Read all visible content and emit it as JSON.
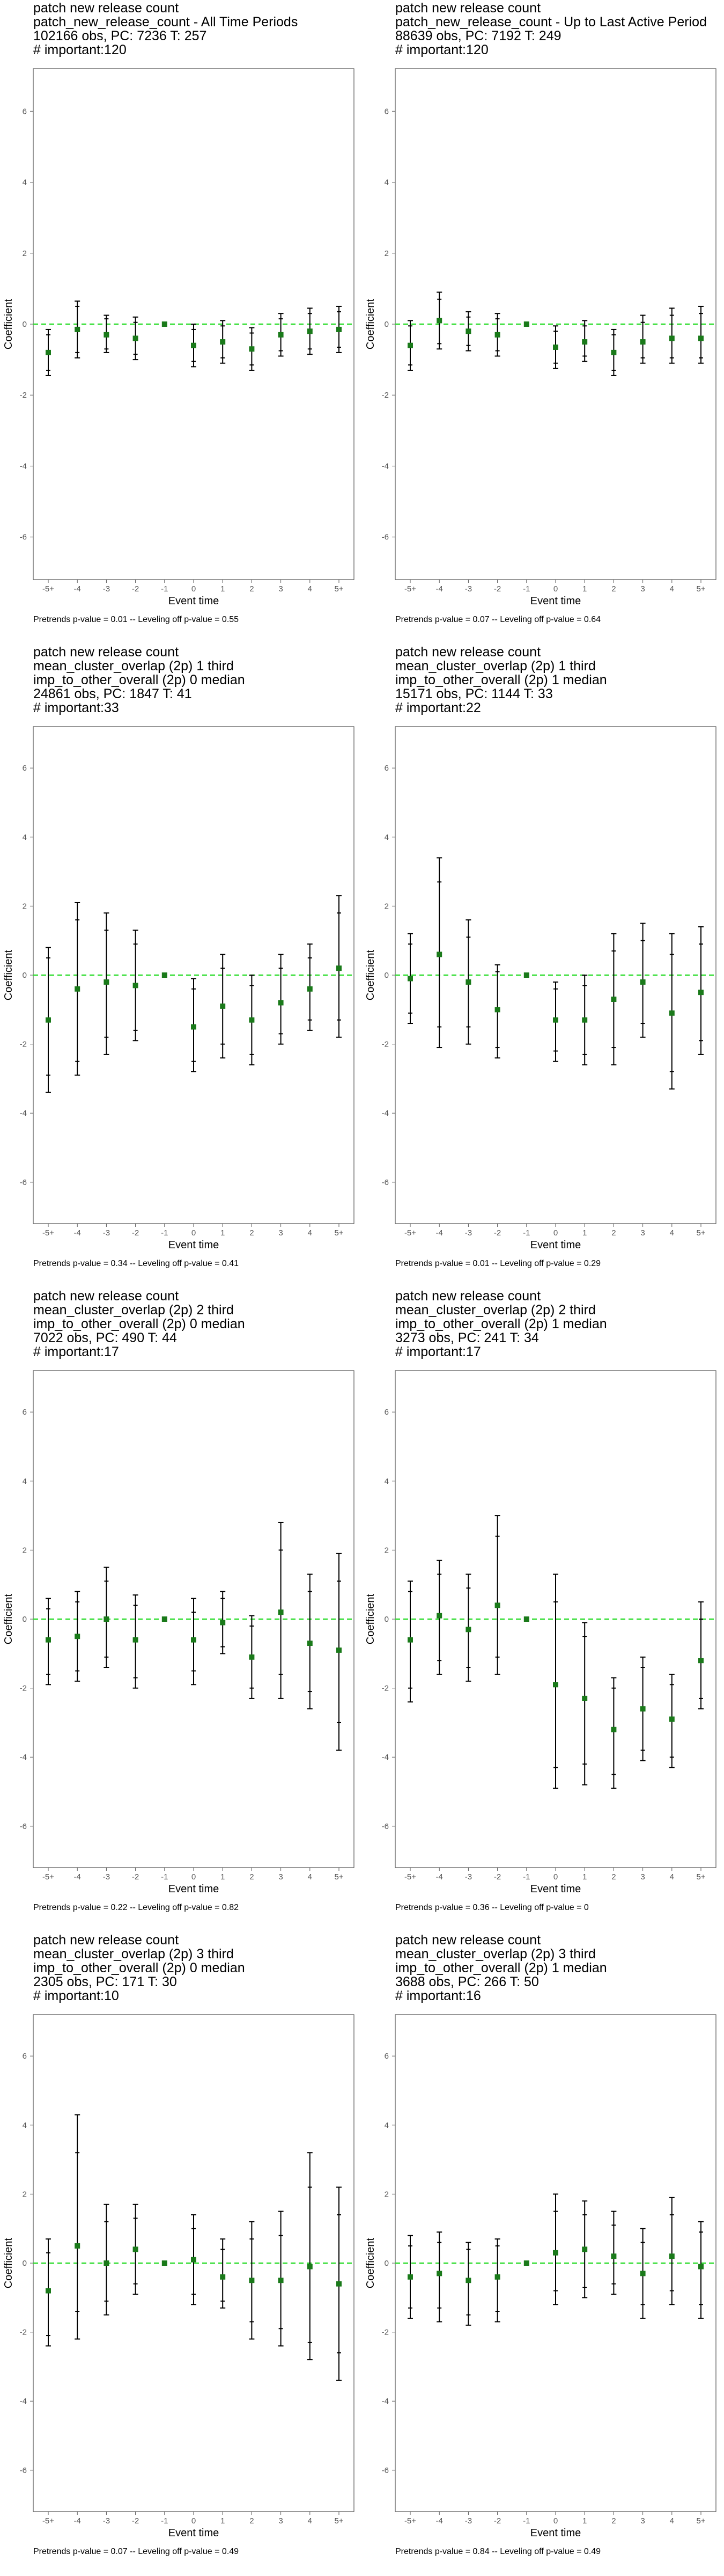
{
  "chart_data": [
    {
      "type": "scatter",
      "title_lines": [
        "patch new release count",
        "patch_new_release_count - All Time Periods",
        "102166 obs, PC: 7236 T: 257",
        "# important:120"
      ],
      "xlabel": "Event time",
      "ylabel": "Coefficient",
      "x_categories": [
        "-5+",
        "-4",
        "-3",
        "-2",
        "-1",
        "0",
        "1",
        "2",
        "3",
        "4",
        "5+"
      ],
      "ylim": [
        -7.2,
        7.2
      ],
      "yticks": [
        -6,
        -4,
        -2,
        0,
        2,
        4,
        6
      ],
      "points": [
        -0.8,
        -0.15,
        -0.3,
        -0.4,
        0,
        -0.6,
        -0.5,
        -0.7,
        -0.3,
        -0.2,
        -0.15
      ],
      "ci95": [
        [
          -1.45,
          -0.15
        ],
        [
          -0.95,
          0.65
        ],
        [
          -0.8,
          0.25
        ],
        [
          -1.0,
          0.2
        ],
        [
          0,
          0
        ],
        [
          -1.2,
          0.0
        ],
        [
          -1.1,
          0.1
        ],
        [
          -1.3,
          -0.1
        ],
        [
          -0.9,
          0.3
        ],
        [
          -0.85,
          0.45
        ],
        [
          -0.8,
          0.5
        ]
      ],
      "ci90": [
        [
          -1.3,
          -0.3
        ],
        [
          -0.8,
          0.5
        ],
        [
          -0.7,
          0.15
        ],
        [
          -0.85,
          0.05
        ],
        [
          0,
          0
        ],
        [
          -1.05,
          -0.15
        ],
        [
          -0.95,
          -0.05
        ],
        [
          -1.15,
          -0.25
        ],
        [
          -0.75,
          0.15
        ],
        [
          -0.7,
          0.3
        ],
        [
          -0.65,
          0.35
        ]
      ],
      "footnote": "Pretrends p-value = 0.01 -- Leveling off p-value = 0.55"
    },
    {
      "type": "scatter",
      "title_lines": [
        "patch new release count",
        "patch_new_release_count - Up to Last Active Period",
        "88639 obs, PC: 7192 T: 249",
        "# important:120"
      ],
      "xlabel": "Event time",
      "ylabel": "Coefficient",
      "x_categories": [
        "-5+",
        "-4",
        "-3",
        "-2",
        "-1",
        "0",
        "1",
        "2",
        "3",
        "4",
        "5+"
      ],
      "ylim": [
        -7.2,
        7.2
      ],
      "yticks": [
        -6,
        -4,
        -2,
        0,
        2,
        4,
        6
      ],
      "points": [
        -0.6,
        0.1,
        -0.2,
        -0.3,
        0,
        -0.65,
        -0.5,
        -0.8,
        -0.5,
        -0.4,
        -0.4
      ],
      "ci95": [
        [
          -1.3,
          0.1
        ],
        [
          -0.7,
          0.9
        ],
        [
          -0.75,
          0.35
        ],
        [
          -0.9,
          0.3
        ],
        [
          0,
          0
        ],
        [
          -1.25,
          -0.05
        ],
        [
          -1.05,
          0.1
        ],
        [
          -1.45,
          -0.15
        ],
        [
          -1.1,
          0.25
        ],
        [
          -1.1,
          0.45
        ],
        [
          -1.1,
          0.5
        ]
      ],
      "ci90": [
        [
          -1.15,
          -0.05
        ],
        [
          -0.55,
          0.7
        ],
        [
          -0.6,
          0.2
        ],
        [
          -0.75,
          0.15
        ],
        [
          0,
          0
        ],
        [
          -1.1,
          -0.2
        ],
        [
          -0.9,
          -0.05
        ],
        [
          -1.3,
          -0.3
        ],
        [
          -0.95,
          0.05
        ],
        [
          -0.95,
          0.25
        ],
        [
          -0.95,
          0.3
        ]
      ],
      "footnote": "Pretrends p-value = 0.07 -- Leveling off p-value = 0.64"
    },
    {
      "type": "scatter",
      "title_lines": [
        "patch new release count",
        "mean_cluster_overlap (2p) 1 third",
        "imp_to_other_overall (2p) 0 median",
        "24861 obs, PC: 1847 T: 41",
        "# important:33"
      ],
      "xlabel": "Event time",
      "ylabel": "Coefficient",
      "x_categories": [
        "-5+",
        "-4",
        "-3",
        "-2",
        "-1",
        "0",
        "1",
        "2",
        "3",
        "4",
        "5+"
      ],
      "ylim": [
        -7.2,
        7.2
      ],
      "yticks": [
        -6,
        -4,
        -2,
        0,
        2,
        4,
        6
      ],
      "points": [
        -1.3,
        -0.4,
        -0.2,
        -0.3,
        0,
        -1.5,
        -0.9,
        -1.3,
        -0.8,
        -0.4,
        0.2
      ],
      "ci95": [
        [
          -3.4,
          0.8
        ],
        [
          -2.9,
          2.1
        ],
        [
          -2.3,
          1.8
        ],
        [
          -1.9,
          1.3
        ],
        [
          0,
          0
        ],
        [
          -2.8,
          -0.1
        ],
        [
          -2.4,
          0.6
        ],
        [
          -2.6,
          0.0
        ],
        [
          -2.0,
          0.6
        ],
        [
          -1.6,
          0.9
        ],
        [
          -1.8,
          2.3
        ]
      ],
      "ci90": [
        [
          -2.9,
          0.5
        ],
        [
          -2.5,
          1.6
        ],
        [
          -1.8,
          1.3
        ],
        [
          -1.6,
          0.9
        ],
        [
          0,
          0
        ],
        [
          -2.5,
          -0.4
        ],
        [
          -2.0,
          0.2
        ],
        [
          -2.3,
          -0.3
        ],
        [
          -1.7,
          0.2
        ],
        [
          -1.3,
          0.5
        ],
        [
          -1.3,
          1.8
        ]
      ],
      "footnote": "Pretrends p-value = 0.34 -- Leveling off p-value = 0.41"
    },
    {
      "type": "scatter",
      "title_lines": [
        "patch new release count",
        "mean_cluster_overlap (2p) 1 third",
        "imp_to_other_overall (2p) 1 median",
        "15171 obs, PC: 1144 T: 33",
        "# important:22"
      ],
      "xlabel": "Event time",
      "ylabel": "Coefficient",
      "x_categories": [
        "-5+",
        "-4",
        "-3",
        "-2",
        "-1",
        "0",
        "1",
        "2",
        "3",
        "4",
        "5+"
      ],
      "ylim": [
        -7.2,
        7.2
      ],
      "yticks": [
        -6,
        -4,
        -2,
        0,
        2,
        4,
        6
      ],
      "points": [
        -0.1,
        0.6,
        -0.2,
        -1.0,
        0,
        -1.3,
        -1.3,
        -0.7,
        -0.2,
        -1.1,
        -0.5
      ],
      "ci95": [
        [
          -1.4,
          1.2
        ],
        [
          -2.1,
          3.4
        ],
        [
          -2.0,
          1.6
        ],
        [
          -2.4,
          0.3
        ],
        [
          0,
          0
        ],
        [
          -2.5,
          -0.2
        ],
        [
          -2.6,
          0.0
        ],
        [
          -2.6,
          1.2
        ],
        [
          -1.8,
          1.5
        ],
        [
          -3.3,
          1.2
        ],
        [
          -2.3,
          1.4
        ]
      ],
      "ci90": [
        [
          -1.1,
          0.9
        ],
        [
          -1.5,
          2.7
        ],
        [
          -1.5,
          1.1
        ],
        [
          -2.1,
          0.1
        ],
        [
          0,
          0
        ],
        [
          -2.2,
          -0.4
        ],
        [
          -2.3,
          -0.3
        ],
        [
          -2.1,
          0.7
        ],
        [
          -1.4,
          1.0
        ],
        [
          -2.8,
          0.6
        ],
        [
          -1.9,
          0.9
        ]
      ],
      "footnote": "Pretrends p-value = 0.01 -- Leveling off p-value = 0.29"
    },
    {
      "type": "scatter",
      "title_lines": [
        "patch new release count",
        "mean_cluster_overlap (2p) 2 third",
        "imp_to_other_overall (2p) 0 median",
        "7022 obs, PC: 490 T: 44",
        "# important:17"
      ],
      "xlabel": "Event time",
      "ylabel": "Coefficient",
      "x_categories": [
        "-5+",
        "-4",
        "-3",
        "-2",
        "-1",
        "0",
        "1",
        "2",
        "3",
        "4",
        "5+"
      ],
      "ylim": [
        -7.2,
        7.2
      ],
      "yticks": [
        -6,
        -4,
        -2,
        0,
        2,
        4,
        6
      ],
      "points": [
        -0.6,
        -0.5,
        0.0,
        -0.6,
        0,
        -0.6,
        -0.1,
        -1.1,
        0.2,
        -0.7,
        -0.9
      ],
      "ci95": [
        [
          -1.9,
          0.6
        ],
        [
          -1.8,
          0.8
        ],
        [
          -1.4,
          1.5
        ],
        [
          -2.0,
          0.7
        ],
        [
          0,
          0
        ],
        [
          -1.9,
          0.6
        ],
        [
          -1.0,
          0.8
        ],
        [
          -2.3,
          0.1
        ],
        [
          -2.3,
          2.8
        ],
        [
          -2.6,
          1.3
        ],
        [
          -3.8,
          1.9
        ]
      ],
      "ci90": [
        [
          -1.6,
          0.3
        ],
        [
          -1.5,
          0.5
        ],
        [
          -1.1,
          1.1
        ],
        [
          -1.7,
          0.4
        ],
        [
          0,
          0
        ],
        [
          -1.5,
          0.2
        ],
        [
          -0.8,
          0.6
        ],
        [
          -2.0,
          -0.2
        ],
        [
          -1.6,
          2.0
        ],
        [
          -2.1,
          0.8
        ],
        [
          -3.0,
          1.1
        ]
      ],
      "footnote": "Pretrends p-value = 0.22 -- Leveling off p-value = 0.82"
    },
    {
      "type": "scatter",
      "title_lines": [
        "patch new release count",
        "mean_cluster_overlap (2p) 2 third",
        "imp_to_other_overall (2p) 1 median",
        "3273 obs, PC: 241 T: 34",
        "# important:17"
      ],
      "xlabel": "Event time",
      "ylabel": "Coefficient",
      "x_categories": [
        "-5+",
        "-4",
        "-3",
        "-2",
        "-1",
        "0",
        "1",
        "2",
        "3",
        "4",
        "5+"
      ],
      "ylim": [
        -7.2,
        7.2
      ],
      "yticks": [
        -6,
        -4,
        -2,
        0,
        2,
        4,
        6
      ],
      "points": [
        -0.6,
        0.1,
        -0.3,
        0.4,
        0,
        -1.9,
        -2.3,
        -3.2,
        -2.6,
        -2.9,
        -1.2
      ],
      "ci95": [
        [
          -2.4,
          1.1
        ],
        [
          -1.6,
          1.7
        ],
        [
          -1.8,
          1.3
        ],
        [
          -1.6,
          3.0
        ],
        [
          0,
          0
        ],
        [
          -4.9,
          1.3
        ],
        [
          -4.8,
          -0.1
        ],
        [
          -4.9,
          -1.7
        ],
        [
          -4.1,
          -1.1
        ],
        [
          -4.3,
          -1.6
        ],
        [
          -2.6,
          0.5
        ]
      ],
      "ci90": [
        [
          -2.0,
          0.8
        ],
        [
          -1.2,
          1.3
        ],
        [
          -1.4,
          0.9
        ],
        [
          -1.1,
          2.4
        ],
        [
          0,
          0
        ],
        [
          -4.3,
          0.5
        ],
        [
          -4.2,
          -0.5
        ],
        [
          -4.5,
          -2.0
        ],
        [
          -3.8,
          -1.4
        ],
        [
          -4.0,
          -1.9
        ],
        [
          -2.3,
          0.0
        ]
      ],
      "footnote": "Pretrends p-value = 0.36 -- Leveling off p-value = 0"
    },
    {
      "type": "scatter",
      "title_lines": [
        "patch new release count",
        "mean_cluster_overlap (2p) 3 third",
        "imp_to_other_overall (2p) 0 median",
        "2305 obs, PC: 171 T: 30",
        "# important:10"
      ],
      "xlabel": "Event time",
      "ylabel": "Coefficient",
      "x_categories": [
        "-5+",
        "-4",
        "-3",
        "-2",
        "-1",
        "0",
        "1",
        "2",
        "3",
        "4",
        "5+"
      ],
      "ylim": [
        -7.2,
        7.2
      ],
      "yticks": [
        -6,
        -4,
        -2,
        0,
        2,
        4,
        6
      ],
      "points": [
        -0.8,
        0.5,
        0.0,
        0.4,
        0,
        0.1,
        -0.4,
        -0.5,
        -0.5,
        -0.1,
        -0.6
      ],
      "ci95": [
        [
          -2.4,
          0.7
        ],
        [
          -2.2,
          4.3
        ],
        [
          -1.5,
          1.7
        ],
        [
          -0.9,
          1.7
        ],
        [
          0,
          0
        ],
        [
          -1.2,
          1.4
        ],
        [
          -1.3,
          0.7
        ],
        [
          -2.2,
          1.2
        ],
        [
          -2.4,
          1.5
        ],
        [
          -2.8,
          3.2
        ],
        [
          -3.4,
          2.2
        ]
      ],
      "ci90": [
        [
          -2.1,
          0.3
        ],
        [
          -1.4,
          3.2
        ],
        [
          -1.1,
          1.2
        ],
        [
          -0.6,
          1.3
        ],
        [
          0,
          0
        ],
        [
          -0.9,
          1.0
        ],
        [
          -1.1,
          0.4
        ],
        [
          -1.7,
          0.7
        ],
        [
          -1.9,
          0.8
        ],
        [
          -2.3,
          2.2
        ],
        [
          -2.6,
          1.4
        ]
      ],
      "footnote": "Pretrends p-value = 0.07 -- Leveling off p-value = 0.49"
    },
    {
      "type": "scatter",
      "title_lines": [
        "patch new release count",
        "mean_cluster_overlap (2p) 3 third",
        "imp_to_other_overall (2p) 1 median",
        "3688 obs, PC: 266 T: 50",
        "# important:16"
      ],
      "xlabel": "Event time",
      "ylabel": "Coefficient",
      "x_categories": [
        "-5+",
        "-4",
        "-3",
        "-2",
        "-1",
        "0",
        "1",
        "2",
        "3",
        "4",
        "5+"
      ],
      "ylim": [
        -7.2,
        7.2
      ],
      "yticks": [
        -6,
        -4,
        -2,
        0,
        2,
        4,
        6
      ],
      "points": [
        -0.4,
        -0.3,
        -0.5,
        -0.4,
        0,
        0.3,
        0.4,
        0.2,
        -0.3,
        0.2,
        -0.1
      ],
      "ci95": [
        [
          -1.6,
          0.8
        ],
        [
          -1.7,
          0.9
        ],
        [
          -1.8,
          0.6
        ],
        [
          -1.7,
          0.7
        ],
        [
          0,
          0
        ],
        [
          -1.2,
          2.0
        ],
        [
          -1.0,
          1.8
        ],
        [
          -0.9,
          1.5
        ],
        [
          -1.6,
          1.0
        ],
        [
          -1.2,
          1.9
        ],
        [
          -1.6,
          1.2
        ]
      ],
      "ci90": [
        [
          -1.3,
          0.5
        ],
        [
          -1.3,
          0.6
        ],
        [
          -1.5,
          0.4
        ],
        [
          -1.4,
          0.5
        ],
        [
          0,
          0
        ],
        [
          -0.8,
          1.5
        ],
        [
          -0.7,
          1.4
        ],
        [
          -0.6,
          1.1
        ],
        [
          -1.2,
          0.6
        ],
        [
          -0.8,
          1.4
        ],
        [
          -1.2,
          0.9
        ]
      ],
      "footnote": "Pretrends p-value = 0.84 -- Leveling off p-value = 0.49"
    }
  ],
  "colors": {
    "point": "#1a7a1a",
    "ci": "#000000",
    "zero_line": "#33dd33",
    "axis": "#555555",
    "tick_text": "#555555"
  }
}
